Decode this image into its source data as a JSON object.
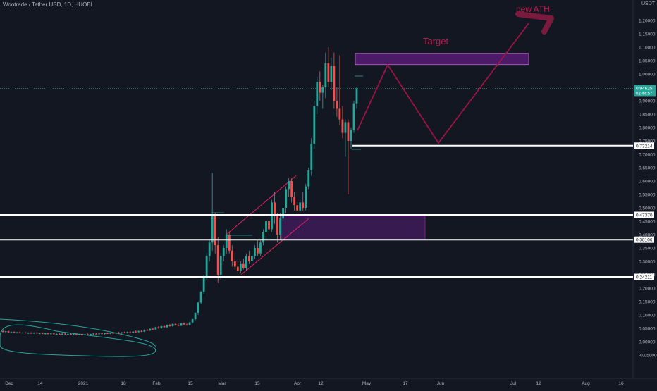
{
  "header": {
    "symbol_title": "Wootrade / Tether USD, 1D, HUOBI",
    "currency": "USDT"
  },
  "price_tag": {
    "price": "0.94625",
    "countdown": "02:44:57"
  },
  "chart_data": {
    "type": "candlestick",
    "ylim": [
      -0.1,
      1.25
    ],
    "y_ticks": [
      "1.20000",
      "1.15000",
      "1.10000",
      "1.05000",
      "1.00000",
      "0.90000",
      "0.85000",
      "0.80000",
      "0.75000",
      "0.70000",
      "0.65000",
      "0.60000",
      "0.55000",
      "0.50000",
      "0.45000",
      "0.40000",
      "0.35000",
      "0.30000",
      "0.25000",
      "0.20000",
      "0.15000",
      "0.10000",
      "0.05000",
      "0.00000",
      "-0.05000"
    ],
    "x_ticks": [
      "Dec",
      "14",
      "2021",
      "18",
      "Feb",
      "15",
      "Mar",
      "15",
      "Apr",
      "12",
      "May",
      "17",
      "Jun",
      "Jul",
      "12",
      "Aug",
      "16"
    ],
    "levels": [
      {
        "label": "0.73214",
        "value": 0.73214
      },
      {
        "label": "0.47370",
        "value": 0.4737
      },
      {
        "label": "0.38106",
        "value": 0.38106
      },
      {
        "label": "0.24211",
        "value": 0.24211
      }
    ],
    "annotations": {
      "target": "Target",
      "new_ath": "new ATH"
    },
    "candles": [
      {
        "o": 0.04,
        "h": 0.042,
        "l": 0.034,
        "c": 0.037
      },
      {
        "o": 0.037,
        "h": 0.04,
        "l": 0.033,
        "c": 0.039
      },
      {
        "o": 0.039,
        "h": 0.041,
        "l": 0.034,
        "c": 0.035
      },
      {
        "o": 0.035,
        "h": 0.038,
        "l": 0.032,
        "c": 0.036
      },
      {
        "o": 0.036,
        "h": 0.039,
        "l": 0.033,
        "c": 0.034
      },
      {
        "o": 0.034,
        "h": 0.037,
        "l": 0.031,
        "c": 0.035
      },
      {
        "o": 0.035,
        "h": 0.038,
        "l": 0.032,
        "c": 0.033
      },
      {
        "o": 0.033,
        "h": 0.036,
        "l": 0.03,
        "c": 0.034
      },
      {
        "o": 0.034,
        "h": 0.037,
        "l": 0.031,
        "c": 0.032
      },
      {
        "o": 0.032,
        "h": 0.035,
        "l": 0.029,
        "c": 0.033
      },
      {
        "o": 0.033,
        "h": 0.036,
        "l": 0.03,
        "c": 0.031
      },
      {
        "o": 0.031,
        "h": 0.035,
        "l": 0.029,
        "c": 0.034
      },
      {
        "o": 0.034,
        "h": 0.036,
        "l": 0.03,
        "c": 0.031
      },
      {
        "o": 0.031,
        "h": 0.034,
        "l": 0.028,
        "c": 0.032
      },
      {
        "o": 0.032,
        "h": 0.035,
        "l": 0.029,
        "c": 0.03
      },
      {
        "o": 0.03,
        "h": 0.033,
        "l": 0.027,
        "c": 0.031
      },
      {
        "o": 0.031,
        "h": 0.034,
        "l": 0.028,
        "c": 0.029
      },
      {
        "o": 0.029,
        "h": 0.033,
        "l": 0.026,
        "c": 0.031
      },
      {
        "o": 0.031,
        "h": 0.033,
        "l": 0.027,
        "c": 0.028
      },
      {
        "o": 0.028,
        "h": 0.031,
        "l": 0.025,
        "c": 0.029
      },
      {
        "o": 0.029,
        "h": 0.032,
        "l": 0.026,
        "c": 0.027
      },
      {
        "o": 0.027,
        "h": 0.031,
        "l": 0.025,
        "c": 0.03
      },
      {
        "o": 0.03,
        "h": 0.032,
        "l": 0.026,
        "c": 0.028
      },
      {
        "o": 0.028,
        "h": 0.031,
        "l": 0.025,
        "c": 0.029
      },
      {
        "o": 0.029,
        "h": 0.032,
        "l": 0.026,
        "c": 0.027
      },
      {
        "o": 0.027,
        "h": 0.03,
        "l": 0.024,
        "c": 0.028
      },
      {
        "o": 0.028,
        "h": 0.031,
        "l": 0.025,
        "c": 0.026
      },
      {
        "o": 0.026,
        "h": 0.03,
        "l": 0.024,
        "c": 0.029
      },
      {
        "o": 0.029,
        "h": 0.031,
        "l": 0.025,
        "c": 0.027
      },
      {
        "o": 0.027,
        "h": 0.03,
        "l": 0.024,
        "c": 0.028
      },
      {
        "o": 0.028,
        "h": 0.031,
        "l": 0.025,
        "c": 0.026
      },
      {
        "o": 0.026,
        "h": 0.03,
        "l": 0.024,
        "c": 0.029
      },
      {
        "o": 0.029,
        "h": 0.032,
        "l": 0.026,
        "c": 0.03
      },
      {
        "o": 0.03,
        "h": 0.033,
        "l": 0.027,
        "c": 0.028
      },
      {
        "o": 0.028,
        "h": 0.032,
        "l": 0.026,
        "c": 0.031
      },
      {
        "o": 0.031,
        "h": 0.034,
        "l": 0.028,
        "c": 0.029
      },
      {
        "o": 0.029,
        "h": 0.033,
        "l": 0.027,
        "c": 0.032
      },
      {
        "o": 0.032,
        "h": 0.035,
        "l": 0.029,
        "c": 0.03
      },
      {
        "o": 0.03,
        "h": 0.034,
        "l": 0.028,
        "c": 0.033
      },
      {
        "o": 0.033,
        "h": 0.036,
        "l": 0.03,
        "c": 0.031
      },
      {
        "o": 0.031,
        "h": 0.035,
        "l": 0.029,
        "c": 0.034
      },
      {
        "o": 0.034,
        "h": 0.037,
        "l": 0.031,
        "c": 0.032
      },
      {
        "o": 0.032,
        "h": 0.036,
        "l": 0.03,
        "c": 0.035
      },
      {
        "o": 0.035,
        "h": 0.038,
        "l": 0.032,
        "c": 0.033
      },
      {
        "o": 0.033,
        "h": 0.038,
        "l": 0.031,
        "c": 0.036
      },
      {
        "o": 0.036,
        "h": 0.04,
        "l": 0.033,
        "c": 0.034
      },
      {
        "o": 0.034,
        "h": 0.039,
        "l": 0.032,
        "c": 0.038
      },
      {
        "o": 0.038,
        "h": 0.042,
        "l": 0.034,
        "c": 0.036
      },
      {
        "o": 0.036,
        "h": 0.041,
        "l": 0.034,
        "c": 0.04
      },
      {
        "o": 0.04,
        "h": 0.044,
        "l": 0.036,
        "c": 0.038
      },
      {
        "o": 0.038,
        "h": 0.046,
        "l": 0.036,
        "c": 0.044
      },
      {
        "o": 0.044,
        "h": 0.048,
        "l": 0.04,
        "c": 0.042
      },
      {
        "o": 0.042,
        "h": 0.05,
        "l": 0.04,
        "c": 0.048
      },
      {
        "o": 0.048,
        "h": 0.052,
        "l": 0.044,
        "c": 0.046
      },
      {
        "o": 0.046,
        "h": 0.056,
        "l": 0.044,
        "c": 0.054
      },
      {
        "o": 0.054,
        "h": 0.058,
        "l": 0.048,
        "c": 0.05
      },
      {
        "o": 0.05,
        "h": 0.06,
        "l": 0.048,
        "c": 0.058
      },
      {
        "o": 0.058,
        "h": 0.062,
        "l": 0.052,
        "c": 0.054
      },
      {
        "o": 0.054,
        "h": 0.064,
        "l": 0.052,
        "c": 0.062
      },
      {
        "o": 0.062,
        "h": 0.066,
        "l": 0.056,
        "c": 0.058
      },
      {
        "o": 0.058,
        "h": 0.068,
        "l": 0.056,
        "c": 0.066
      },
      {
        "o": 0.066,
        "h": 0.07,
        "l": 0.06,
        "c": 0.062
      },
      {
        "o": 0.062,
        "h": 0.068,
        "l": 0.058,
        "c": 0.06
      },
      {
        "o": 0.06,
        "h": 0.07,
        "l": 0.058,
        "c": 0.068
      },
      {
        "o": 0.068,
        "h": 0.072,
        "l": 0.062,
        "c": 0.064
      },
      {
        "o": 0.064,
        "h": 0.07,
        "l": 0.06,
        "c": 0.062
      },
      {
        "o": 0.062,
        "h": 0.074,
        "l": 0.06,
        "c": 0.072
      },
      {
        "o": 0.072,
        "h": 0.086,
        "l": 0.068,
        "c": 0.084
      },
      {
        "o": 0.084,
        "h": 0.11,
        "l": 0.08,
        "c": 0.108
      },
      {
        "o": 0.108,
        "h": 0.15,
        "l": 0.1,
        "c": 0.146
      },
      {
        "o": 0.146,
        "h": 0.19,
        "l": 0.14,
        "c": 0.186
      },
      {
        "o": 0.186,
        "h": 0.25,
        "l": 0.178,
        "c": 0.24
      },
      {
        "o": 0.24,
        "h": 0.33,
        "l": 0.232,
        "c": 0.32
      },
      {
        "o": 0.32,
        "h": 0.38,
        "l": 0.3,
        "c": 0.37
      },
      {
        "o": 0.37,
        "h": 0.63,
        "l": 0.34,
        "c": 0.47
      },
      {
        "o": 0.47,
        "h": 0.48,
        "l": 0.33,
        "c": 0.36
      },
      {
        "o": 0.36,
        "h": 0.39,
        "l": 0.22,
        "c": 0.25
      },
      {
        "o": 0.25,
        "h": 0.33,
        "l": 0.23,
        "c": 0.32
      },
      {
        "o": 0.32,
        "h": 0.36,
        "l": 0.3,
        "c": 0.35
      },
      {
        "o": 0.35,
        "h": 0.42,
        "l": 0.33,
        "c": 0.4
      },
      {
        "o": 0.4,
        "h": 0.41,
        "l": 0.33,
        "c": 0.34
      },
      {
        "o": 0.34,
        "h": 0.36,
        "l": 0.28,
        "c": 0.3
      },
      {
        "o": 0.3,
        "h": 0.33,
        "l": 0.27,
        "c": 0.28
      },
      {
        "o": 0.28,
        "h": 0.3,
        "l": 0.255,
        "c": 0.265
      },
      {
        "o": 0.265,
        "h": 0.3,
        "l": 0.255,
        "c": 0.29
      },
      {
        "o": 0.29,
        "h": 0.31,
        "l": 0.27,
        "c": 0.275
      },
      {
        "o": 0.275,
        "h": 0.33,
        "l": 0.265,
        "c": 0.32
      },
      {
        "o": 0.32,
        "h": 0.34,
        "l": 0.29,
        "c": 0.3
      },
      {
        "o": 0.3,
        "h": 0.33,
        "l": 0.29,
        "c": 0.32
      },
      {
        "o": 0.32,
        "h": 0.36,
        "l": 0.31,
        "c": 0.35
      },
      {
        "o": 0.35,
        "h": 0.38,
        "l": 0.32,
        "c": 0.33
      },
      {
        "o": 0.33,
        "h": 0.38,
        "l": 0.32,
        "c": 0.37
      },
      {
        "o": 0.37,
        "h": 0.42,
        "l": 0.36,
        "c": 0.41
      },
      {
        "o": 0.41,
        "h": 0.46,
        "l": 0.38,
        "c": 0.45
      },
      {
        "o": 0.45,
        "h": 0.47,
        "l": 0.4,
        "c": 0.42
      },
      {
        "o": 0.42,
        "h": 0.53,
        "l": 0.41,
        "c": 0.52
      },
      {
        "o": 0.52,
        "h": 0.56,
        "l": 0.44,
        "c": 0.47
      },
      {
        "o": 0.47,
        "h": 0.48,
        "l": 0.37,
        "c": 0.4
      },
      {
        "o": 0.4,
        "h": 0.48,
        "l": 0.38,
        "c": 0.46
      },
      {
        "o": 0.46,
        "h": 0.51,
        "l": 0.44,
        "c": 0.5
      },
      {
        "o": 0.5,
        "h": 0.58,
        "l": 0.48,
        "c": 0.57
      },
      {
        "o": 0.57,
        "h": 0.61,
        "l": 0.54,
        "c": 0.6
      },
      {
        "o": 0.6,
        "h": 0.61,
        "l": 0.52,
        "c": 0.54
      },
      {
        "o": 0.54,
        "h": 0.56,
        "l": 0.49,
        "c": 0.51
      },
      {
        "o": 0.51,
        "h": 0.52,
        "l": 0.47,
        "c": 0.49
      },
      {
        "o": 0.49,
        "h": 0.53,
        "l": 0.48,
        "c": 0.52
      },
      {
        "o": 0.52,
        "h": 0.56,
        "l": 0.49,
        "c": 0.5
      },
      {
        "o": 0.5,
        "h": 0.59,
        "l": 0.49,
        "c": 0.58
      },
      {
        "o": 0.58,
        "h": 0.65,
        "l": 0.57,
        "c": 0.64
      },
      {
        "o": 0.64,
        "h": 0.76,
        "l": 0.62,
        "c": 0.74
      },
      {
        "o": 0.74,
        "h": 0.9,
        "l": 0.72,
        "c": 0.88
      },
      {
        "o": 0.88,
        "h": 0.99,
        "l": 0.85,
        "c": 0.97
      },
      {
        "o": 0.97,
        "h": 1.01,
        "l": 0.9,
        "c": 0.93
      },
      {
        "o": 0.93,
        "h": 0.96,
        "l": 0.87,
        "c": 0.95
      },
      {
        "o": 0.95,
        "h": 1.08,
        "l": 0.91,
        "c": 1.04
      },
      {
        "o": 1.04,
        "h": 1.1,
        "l": 0.95,
        "c": 0.97
      },
      {
        "o": 0.97,
        "h": 1.06,
        "l": 0.94,
        "c": 1.03
      },
      {
        "o": 1.03,
        "h": 1.08,
        "l": 0.87,
        "c": 0.9
      },
      {
        "o": 0.9,
        "h": 0.95,
        "l": 0.84,
        "c": 0.87
      },
      {
        "o": 0.87,
        "h": 1.07,
        "l": 0.81,
        "c": 0.83
      },
      {
        "o": 0.83,
        "h": 0.88,
        "l": 0.76,
        "c": 0.78
      },
      {
        "o": 0.78,
        "h": 0.83,
        "l": 0.69,
        "c": 0.82
      },
      {
        "o": 0.82,
        "h": 0.83,
        "l": 0.55,
        "c": 0.75
      },
      {
        "o": 0.75,
        "h": 0.8,
        "l": 0.72,
        "c": 0.79
      },
      {
        "o": 0.79,
        "h": 0.9,
        "l": 0.78,
        "c": 0.89
      },
      {
        "o": 0.89,
        "h": 0.95,
        "l": 0.87,
        "c": 0.94625
      }
    ]
  }
}
